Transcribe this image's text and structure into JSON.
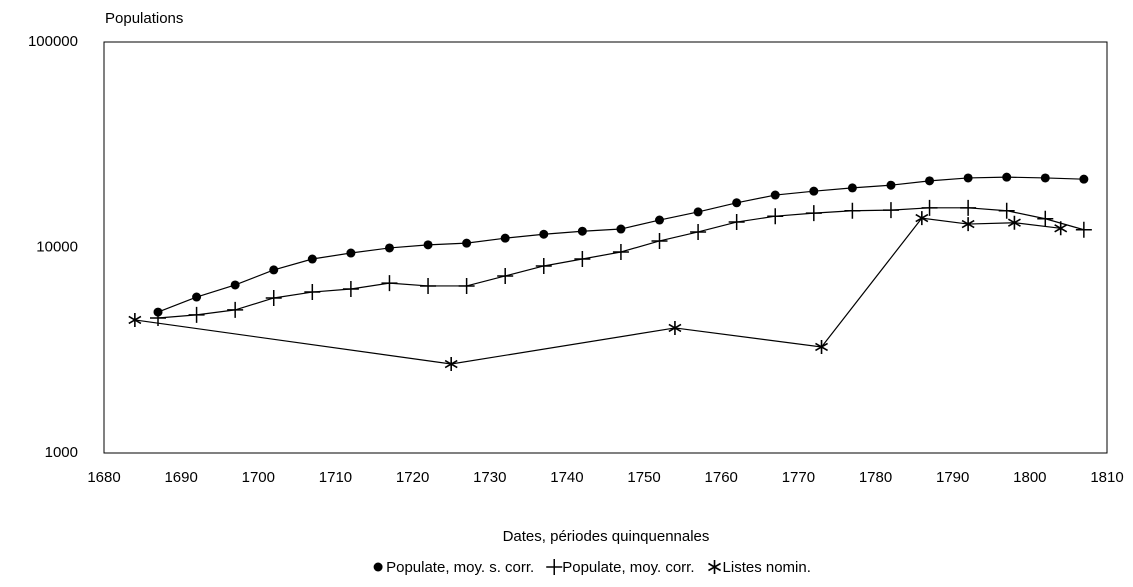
{
  "chart_data": {
    "type": "line",
    "y_label": "Populations",
    "x_label": "Dates, périodes quinquennales",
    "log_y": true,
    "grid": false,
    "legend": "bottom",
    "xlim": [
      1680,
      1810
    ],
    "xticks": [
      1680,
      1690,
      1700,
      1710,
      1720,
      1730,
      1740,
      1750,
      1760,
      1770,
      1780,
      1790,
      1800,
      1810
    ],
    "ylim": [
      1000,
      100000
    ],
    "yticks": [
      1000,
      10000,
      100000
    ],
    "series": [
      {
        "name": "Populate, moy. s. corr.",
        "color": "#000000",
        "marker": "circle",
        "x": [
          1687,
          1692,
          1697,
          1702,
          1707,
          1712,
          1717,
          1722,
          1727,
          1732,
          1737,
          1742,
          1747,
          1752,
          1757,
          1762,
          1767,
          1772,
          1777,
          1782,
          1787,
          1792,
          1797,
          1802,
          1807
        ],
        "values": [
          4850,
          5740,
          6570,
          7780,
          8790,
          9400,
          9950,
          10300,
          10500,
          11100,
          11600,
          12000,
          12300,
          13600,
          14900,
          16500,
          18000,
          18800,
          19500,
          20100,
          21100,
          21800,
          22000,
          21800,
          21500
        ]
      },
      {
        "name": "Populate, moy. corr.",
        "color": "#000000",
        "marker": "plus",
        "x": [
          1687,
          1692,
          1697,
          1702,
          1707,
          1712,
          1717,
          1722,
          1727,
          1732,
          1737,
          1742,
          1747,
          1752,
          1757,
          1762,
          1767,
          1772,
          1777,
          1782,
          1787,
          1792,
          1797,
          1802,
          1807
        ],
        "values": [
          4540,
          4700,
          4970,
          5680,
          6070,
          6280,
          6710,
          6500,
          6500,
          7270,
          8130,
          8790,
          9510,
          10760,
          11900,
          13300,
          14200,
          14700,
          15100,
          15200,
          15600,
          15600,
          15100,
          13800,
          12200
        ]
      },
      {
        "name": "Listes nomin.",
        "color": "#000000",
        "marker": "star",
        "x": [
          1684,
          1725,
          1754,
          1773,
          1786,
          1792,
          1798,
          1804
        ],
        "values": [
          4440,
          2710,
          4060,
          3280,
          13900,
          13000,
          13200,
          12400
        ]
      }
    ]
  }
}
